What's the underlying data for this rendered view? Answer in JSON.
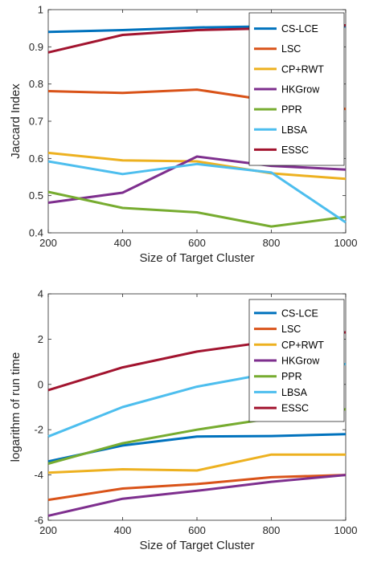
{
  "chart_data": [
    {
      "type": "line",
      "xlabel": "Size of Target Cluster",
      "ylabel": "Jaccard Index",
      "x": [
        200,
        400,
        600,
        800,
        1000
      ],
      "xlim": [
        200,
        1000
      ],
      "ylim": [
        0.4,
        1.0
      ],
      "xticks": [
        "200",
        "400",
        "600",
        "800",
        "1000"
      ],
      "yticks": [
        "0.4",
        "0.5",
        "0.6",
        "0.7",
        "0.8",
        "0.9",
        "1"
      ],
      "grid": false,
      "legend_position": "top-right",
      "series": [
        {
          "name": "CS-LCE",
          "color": "#0072BD",
          "values": [
            0.94,
            0.945,
            0.952,
            0.955,
            0.955
          ]
        },
        {
          "name": "LSC",
          "color": "#D95319",
          "values": [
            0.781,
            0.776,
            0.785,
            0.755,
            0.733
          ]
        },
        {
          "name": "CP+RWT",
          "color": "#EDB120",
          "values": [
            0.615,
            0.595,
            0.592,
            0.56,
            0.545
          ]
        },
        {
          "name": "HKGrow",
          "color": "#7E2F8E",
          "values": [
            0.481,
            0.508,
            0.605,
            0.58,
            0.57
          ]
        },
        {
          "name": "PPR",
          "color": "#77AC30",
          "values": [
            0.51,
            0.467,
            0.455,
            0.417,
            0.443
          ]
        },
        {
          "name": "LBSA",
          "color": "#4DBEEE",
          "values": [
            0.592,
            0.558,
            0.585,
            0.562,
            0.428
          ]
        },
        {
          "name": "ESSC",
          "color": "#A2142F",
          "values": [
            0.885,
            0.932,
            0.945,
            0.95,
            0.958
          ]
        }
      ]
    },
    {
      "type": "line",
      "xlabel": "Size of Target Cluster",
      "ylabel": "logarithm of run time",
      "x": [
        200,
        400,
        600,
        800,
        1000
      ],
      "xlim": [
        200,
        1000
      ],
      "ylim": [
        -6,
        4
      ],
      "xticks": [
        "200",
        "400",
        "600",
        "800",
        "1000"
      ],
      "yticks": [
        "-6",
        "-4",
        "-2",
        "0",
        "2",
        "4"
      ],
      "grid": false,
      "legend_position": "top-right",
      "series": [
        {
          "name": "CS-LCE",
          "color": "#0072BD",
          "values": [
            -3.4,
            -2.7,
            -2.3,
            -2.28,
            -2.2
          ]
        },
        {
          "name": "LSC",
          "color": "#D95319",
          "values": [
            -5.1,
            -4.6,
            -4.4,
            -4.1,
            -4.0
          ]
        },
        {
          "name": "CP+RWT",
          "color": "#EDB120",
          "values": [
            -3.9,
            -3.75,
            -3.8,
            -3.1,
            -3.1
          ]
        },
        {
          "name": "HKGrow",
          "color": "#7E2F8E",
          "values": [
            -5.8,
            -5.05,
            -4.7,
            -4.3,
            -4.0
          ]
        },
        {
          "name": "PPR",
          "color": "#77AC30",
          "values": [
            -3.5,
            -2.6,
            -2.0,
            -1.5,
            -1.1
          ]
        },
        {
          "name": "LBSA",
          "color": "#4DBEEE",
          "values": [
            -2.3,
            -1.0,
            -0.1,
            0.5,
            0.9
          ]
        },
        {
          "name": "ESSC",
          "color": "#A2142F",
          "values": [
            -0.25,
            0.75,
            1.45,
            1.9,
            2.3
          ]
        }
      ]
    }
  ]
}
